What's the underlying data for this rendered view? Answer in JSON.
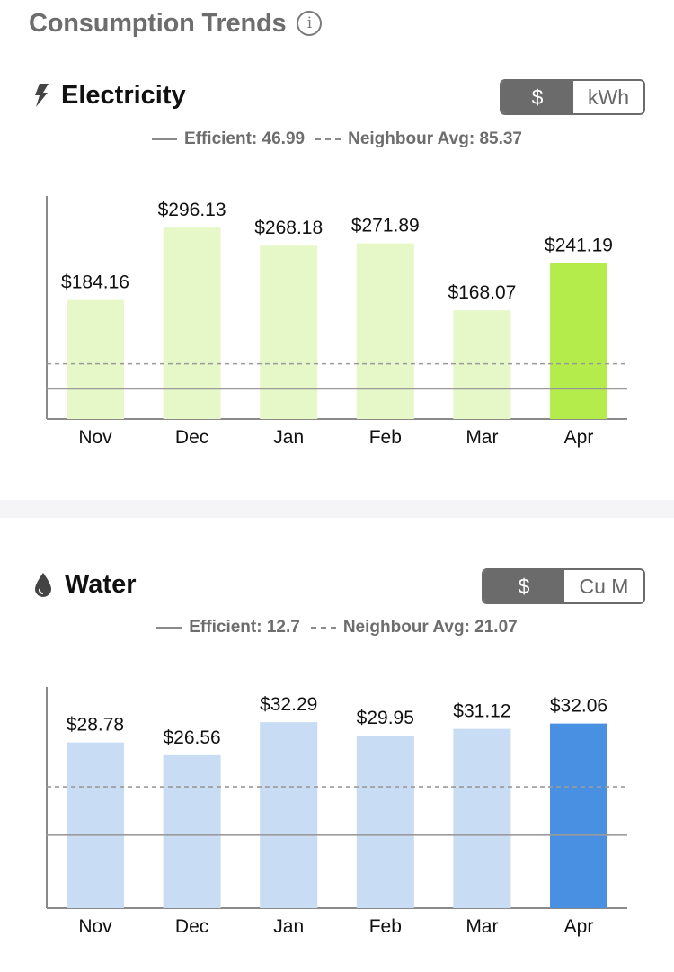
{
  "header": {
    "title": "Consumption Trends",
    "info_icon": "info-icon"
  },
  "chart_data": [
    {
      "type": "bar",
      "title": "Electricity",
      "icon": "lightning-icon",
      "toggle": {
        "options": [
          "$",
          "kWh"
        ],
        "selected": "$"
      },
      "legend": {
        "efficient_label": "Efficient: 46.99",
        "neighbour_label": "Neighbour Avg: 85.37"
      },
      "categories": [
        "Nov",
        "Dec",
        "Jan",
        "Feb",
        "Mar",
        "Apr"
      ],
      "values": [
        184.16,
        296.13,
        268.18,
        271.89,
        168.07,
        241.19
      ],
      "value_labels": [
        "$184.16",
        "$296.13",
        "$268.18",
        "$271.89",
        "$168.07",
        "$241.19"
      ],
      "reference_lines": {
        "efficient": 46.99,
        "neighbour_avg": 85.37
      },
      "highlight_index": 5,
      "colors": {
        "bar": "#e6f8c8",
        "highlight": "#b3ec4b",
        "reference": "#9a9a9a"
      },
      "ylim": [
        0,
        345
      ]
    },
    {
      "type": "bar",
      "title": "Water",
      "icon": "water-drop-icon",
      "toggle": {
        "options": [
          "$",
          "Cu M"
        ],
        "selected": "$"
      },
      "legend": {
        "efficient_label": "Efficient: 12.7",
        "neighbour_label": "Neighbour Avg: 21.07"
      },
      "categories": [
        "Nov",
        "Dec",
        "Jan",
        "Feb",
        "Mar",
        "Apr"
      ],
      "values": [
        28.78,
        26.56,
        32.29,
        29.95,
        31.12,
        32.06
      ],
      "value_labels": [
        "$28.78",
        "$26.56",
        "$32.29",
        "$29.95",
        "$31.12",
        "$32.06"
      ],
      "reference_lines": {
        "efficient": 12.7,
        "neighbour_avg": 21.07
      },
      "highlight_index": 5,
      "colors": {
        "bar": "#c8dcf4",
        "highlight": "#4a90e2",
        "reference": "#9a9a9a"
      },
      "ylim": [
        0,
        38.4
      ]
    }
  ]
}
